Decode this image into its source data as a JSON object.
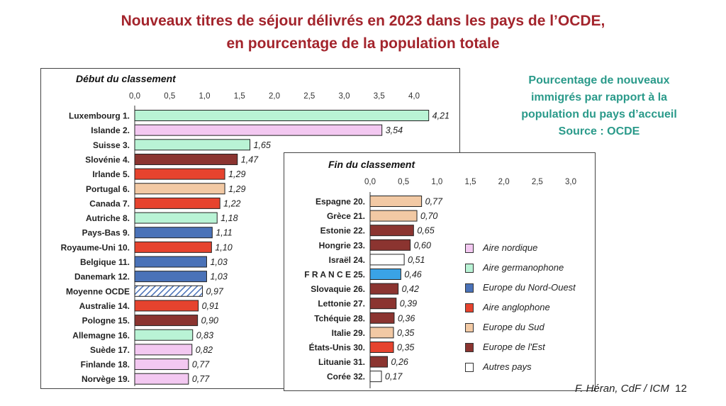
{
  "header": {
    "title_line1": "Nouveaux titres de séjour délivrés en 2023 dans les pays de l’OCDE,",
    "title_line2": "en pourcentage de la population totale"
  },
  "side_note": {
    "line1": "Pourcentage de nouveaux",
    "line2": "immigrés par rapport à la",
    "line3": "population du pays d’accueil",
    "line4": "Source : OCDE"
  },
  "credit": {
    "text": "F. Héran, CdF / ICM",
    "page": "12"
  },
  "colors": {
    "nordique": "#f3c8f1",
    "germanophone": "#b9f3d5",
    "europe_nord_ouest": "#4a72b8",
    "anglophone": "#e6432e",
    "europe_sud": "#f2c9a4",
    "europe_est": "#8b3430",
    "autres": "#ffffff",
    "france": "#3aa3e6",
    "title": "#a3242c",
    "note": "#2a9a8a"
  },
  "legend": [
    {
      "label": "Aire nordique",
      "group": "nordique"
    },
    {
      "label": "Aire germanophone",
      "group": "germanophone"
    },
    {
      "label": "Europe du Nord-Ouest",
      "group": "europe_nord_ouest"
    },
    {
      "label": "Aire anglophone",
      "group": "anglophone"
    },
    {
      "label": "Europe du Sud",
      "group": "europe_sud"
    },
    {
      "label": "Europe de l'Est",
      "group": "europe_est"
    },
    {
      "label": "Autres pays",
      "group": "autres"
    }
  ],
  "chart_data": [
    {
      "type": "bar",
      "orientation": "horizontal",
      "title": "Début du classement",
      "xlim": [
        0,
        4.0
      ],
      "ticks": [
        "0,0",
        "0,5",
        "1,0",
        "1,5",
        "2,0",
        "2,5",
        "3,0",
        "3,5",
        "4,0"
      ],
      "grid": false,
      "categories": [
        "Luxembourg 1.",
        "Islande 2.",
        "Suisse 3.",
        "Slovénie 4.",
        "Irlande 5.",
        "Portugal 6.",
        "Canada 7.",
        "Autriche 8.",
        "Pays-Bas 9.",
        "Royaume-Uni 10.",
        "Belgique 11.",
        "Danemark 12.",
        "Moyenne OCDE",
        "Australie 14.",
        "Pologne 15.",
        "Allemagne 16.",
        "Suède 17.",
        "Finlande 18.",
        "Norvège 19."
      ],
      "values": [
        4.21,
        3.54,
        1.65,
        1.47,
        1.29,
        1.29,
        1.22,
        1.18,
        1.11,
        1.1,
        1.03,
        1.03,
        0.97,
        0.91,
        0.9,
        0.83,
        0.82,
        0.77,
        0.77
      ],
      "value_labels": [
        "4,21",
        "3,54",
        "1,65",
        "1,47",
        "1,29",
        "1,29",
        "1,22",
        "1,18",
        "1,11",
        "1,10",
        "1,03",
        "1,03",
        "0,97",
        "0,91",
        "0,90",
        "0,83",
        "0,82",
        "0,77",
        "0,77"
      ],
      "groups": [
        "germanophone",
        "nordique",
        "germanophone",
        "europe_est",
        "anglophone",
        "europe_sud",
        "anglophone",
        "germanophone",
        "europe_nord_ouest",
        "anglophone",
        "europe_nord_ouest",
        "europe_nord_ouest",
        "moyenne",
        "anglophone",
        "europe_est",
        "germanophone",
        "nordique",
        "nordique",
        "nordique"
      ]
    },
    {
      "type": "bar",
      "orientation": "horizontal",
      "title": "Fin du classement",
      "xlim": [
        0,
        3.0
      ],
      "ticks": [
        "0,0",
        "0,5",
        "1,0",
        "1,5",
        "2,0",
        "2,5",
        "3,0"
      ],
      "grid": false,
      "categories": [
        "Espagne 20.",
        "Grèce 21.",
        "Estonie 22.",
        "Hongrie 23.",
        "Israël 24.",
        "F R A N C E 25.",
        "Slovaquie 26.",
        "Lettonie 27.",
        "Tchéquie 28.",
        "Italie 29.",
        "États-Unis 30.",
        "Lituanie 31.",
        "Corée 32."
      ],
      "values": [
        0.77,
        0.7,
        0.65,
        0.6,
        0.51,
        0.46,
        0.42,
        0.39,
        0.36,
        0.35,
        0.35,
        0.26,
        0.17
      ],
      "value_labels": [
        "0,77",
        "0,70",
        "0,65",
        "0,60",
        "0,51",
        "0,46",
        "0,42",
        "0,39",
        "0,36",
        "0,35",
        "0,35",
        "0,26",
        "0,17"
      ],
      "groups": [
        "europe_sud",
        "europe_sud",
        "europe_est",
        "europe_est",
        "autres",
        "france",
        "europe_est",
        "europe_est",
        "europe_est",
        "europe_sud",
        "anglophone",
        "europe_est",
        "autres"
      ]
    }
  ]
}
